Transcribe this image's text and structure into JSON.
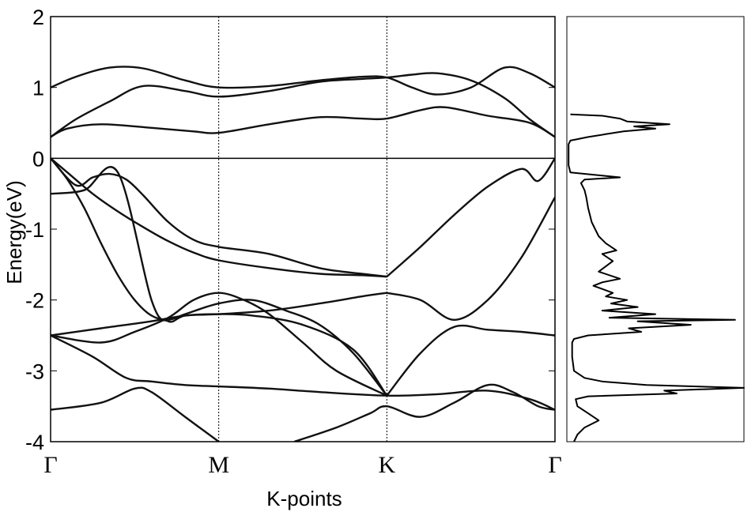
{
  "chart_data": [
    {
      "type": "line",
      "subtype": "band-structure",
      "title": "",
      "xlabel": "K-points",
      "ylabel": "Energy(eV)",
      "ylim": [
        -4,
        2
      ],
      "yticks": [
        2,
        1,
        0,
        -1,
        -2,
        -3,
        -4
      ],
      "ytick_labels": [
        "2",
        "1",
        "0",
        "-1",
        "-2",
        "-3",
        "-4"
      ],
      "x_range": [
        0,
        3
      ],
      "kpoint_positions": [
        0,
        1,
        2,
        3
      ],
      "kpoint_labels": [
        "Γ",
        "M",
        "K",
        "Γ"
      ],
      "fermi_level": 0,
      "grid": false,
      "series": [
        {
          "x": [
            0,
            0.15,
            0.35,
            0.55,
            0.8,
            1.0,
            1.3,
            1.6,
            1.85,
            2.0,
            2.15,
            2.3,
            2.5,
            2.7,
            2.85,
            3.0
          ],
          "y": [
            1.0,
            1.15,
            1.28,
            1.27,
            1.1,
            1.0,
            1.02,
            1.1,
            1.15,
            1.14,
            1.0,
            0.9,
            1.0,
            1.28,
            1.2,
            1.0
          ]
        },
        {
          "x": [
            0,
            0.15,
            0.35,
            0.55,
            0.8,
            1.0,
            1.3,
            1.6,
            1.85,
            2.0,
            2.15,
            2.3,
            2.5,
            2.7,
            2.85,
            3.0
          ],
          "y": [
            0.3,
            0.55,
            0.8,
            1.02,
            0.95,
            0.87,
            0.95,
            1.08,
            1.12,
            1.14,
            1.18,
            1.2,
            1.1,
            0.85,
            0.55,
            0.3
          ]
        },
        {
          "x": [
            0,
            0.1,
            0.3,
            0.6,
            0.85,
            1.0,
            1.3,
            1.6,
            1.85,
            2.0,
            2.2,
            2.35,
            2.6,
            2.85,
            3.0
          ],
          "y": [
            0.3,
            0.42,
            0.48,
            0.43,
            0.38,
            0.36,
            0.48,
            0.58,
            0.56,
            0.56,
            0.68,
            0.72,
            0.6,
            0.5,
            0.3
          ]
        },
        {
          "x": [
            0,
            0.1,
            0.25,
            0.4,
            0.55,
            0.7,
            0.85,
            1.0,
            1.3,
            1.6,
            1.85,
            2.0
          ],
          "y": [
            0.0,
            -0.2,
            -0.5,
            -0.75,
            -0.97,
            -1.17,
            -1.33,
            -1.44,
            -1.55,
            -1.63,
            -1.65,
            -1.67
          ]
        },
        {
          "x": [
            0,
            0.15,
            0.25,
            0.35,
            0.45,
            0.55,
            0.7,
            0.85,
            1.0,
            1.3,
            1.6,
            1.85,
            2.0
          ],
          "y": [
            0.0,
            -0.38,
            -0.27,
            -0.22,
            -0.3,
            -0.52,
            -0.9,
            -1.15,
            -1.25,
            -1.35,
            -1.55,
            -1.63,
            -1.67
          ]
        },
        {
          "x": [
            0,
            0.1,
            0.2,
            0.3,
            0.4,
            0.5,
            0.6,
            0.7,
            0.8,
            1.0,
            1.2,
            1.4,
            1.6,
            1.8,
            2.0
          ],
          "y": [
            0.0,
            -0.3,
            -0.7,
            -1.2,
            -1.65,
            -2.0,
            -2.22,
            -2.28,
            -2.2,
            -2.05,
            -2.0,
            -2.15,
            -2.35,
            -2.75,
            -3.35
          ]
        },
        {
          "x": [
            0,
            0.2,
            0.4,
            0.6,
            0.7,
            0.8,
            1.0,
            1.2,
            1.5,
            1.8,
            2.0
          ],
          "y": [
            -0.5,
            -0.45,
            -0.2,
            -2.0,
            -2.3,
            -2.22,
            -2.2,
            -2.22,
            -2.35,
            -2.7,
            -3.35
          ]
        },
        {
          "x": [
            0,
            0.3,
            0.6,
            0.8,
            1.0,
            1.3,
            1.6,
            1.85,
            2.0
          ],
          "y": [
            -2.5,
            -2.4,
            -2.3,
            -2.22,
            -2.2,
            -2.15,
            -2.05,
            -1.95,
            -1.9
          ]
        },
        {
          "x": [
            0,
            0.3,
            0.5,
            0.7,
            0.85,
            1.0,
            1.15,
            1.3,
            1.5,
            1.7,
            2.0
          ],
          "y": [
            -2.5,
            -2.6,
            -2.45,
            -2.25,
            -2.0,
            -1.9,
            -2.0,
            -2.2,
            -2.6,
            -3.0,
            -3.35
          ]
        },
        {
          "x": [
            0,
            0.25,
            0.45,
            0.6,
            0.8,
            1.0,
            1.3,
            1.6,
            2.0,
            2.3,
            2.6,
            2.85,
            3.0
          ],
          "y": [
            -2.5,
            -2.8,
            -3.1,
            -3.15,
            -3.2,
            -3.22,
            -3.25,
            -3.3,
            -3.35,
            -3.33,
            -3.28,
            -3.4,
            -3.55
          ]
        },
        {
          "x": [
            0,
            0.3,
            0.5,
            0.6,
            0.8,
            1.0
          ],
          "y": [
            -3.55,
            -3.45,
            -3.25,
            -3.3,
            -3.65,
            -4.0
          ]
        },
        {
          "x": [
            1.45,
            1.7,
            1.9,
            2.0,
            2.2,
            2.4,
            2.6,
            2.75,
            2.9,
            3.0
          ],
          "y": [
            -4.0,
            -3.8,
            -3.6,
            -3.5,
            -3.65,
            -3.45,
            -3.2,
            -3.3,
            -3.5,
            -3.55
          ]
        },
        {
          "x": [
            2.0,
            2.2,
            2.4,
            2.6,
            2.8,
            3.0
          ],
          "y": [
            -1.9,
            -2.0,
            -2.28,
            -2.0,
            -1.4,
            -0.55
          ]
        },
        {
          "x": [
            2.0,
            2.2,
            2.4,
            2.6,
            2.8,
            2.9,
            3.0
          ],
          "y": [
            -1.67,
            -1.25,
            -0.8,
            -0.4,
            -0.15,
            -0.32,
            0.0
          ]
        },
        {
          "x": [
            2.0,
            2.2,
            2.4,
            2.6,
            2.8,
            3.0
          ],
          "y": [
            -3.35,
            -2.75,
            -2.38,
            -2.42,
            -2.45,
            -2.5
          ]
        }
      ]
    },
    {
      "type": "line",
      "subtype": "density-of-states",
      "title": "",
      "xlabel": "",
      "ylabel": "",
      "ylim": [
        -4,
        2
      ],
      "xlim": [
        0,
        1
      ],
      "orientation": "vertical",
      "series": [
        {
          "energy": [
            0.62,
            0.6,
            0.56,
            0.52,
            0.48,
            0.45,
            0.42,
            0.38,
            0.34,
            0.3,
            0.27,
            0.25,
            0.2,
            0.1,
            0.0,
            -0.1,
            -0.2,
            -0.27,
            -0.3,
            -0.35,
            -0.45,
            -0.55,
            -0.7,
            -0.9,
            -1.0,
            -1.1,
            -1.2,
            -1.3,
            -1.35,
            -1.45,
            -1.6,
            -1.7,
            -1.75,
            -1.8,
            -1.9,
            -1.95,
            -2.0,
            -2.05,
            -2.1,
            -2.15,
            -2.2,
            -2.25,
            -2.28,
            -2.3,
            -2.35,
            -2.4,
            -2.45,
            -2.5,
            -2.55,
            -2.6,
            -2.8,
            -3.0,
            -3.1,
            -3.15,
            -3.2,
            -3.24,
            -3.28,
            -3.32,
            -3.36,
            -3.4,
            -3.5,
            -3.6,
            -3.7,
            -3.8,
            -3.9,
            -4.0
          ],
          "dos": [
            0.02,
            0.2,
            0.3,
            0.34,
            0.58,
            0.38,
            0.5,
            0.32,
            0.22,
            0.12,
            0.06,
            0.02,
            0.01,
            0.01,
            0.01,
            0.01,
            0.02,
            0.3,
            0.1,
            0.08,
            0.1,
            0.11,
            0.12,
            0.14,
            0.16,
            0.18,
            0.22,
            0.28,
            0.2,
            0.26,
            0.18,
            0.3,
            0.2,
            0.15,
            0.26,
            0.22,
            0.34,
            0.25,
            0.4,
            0.2,
            0.5,
            0.24,
            0.95,
            0.4,
            0.7,
            0.35,
            0.42,
            0.12,
            0.04,
            0.03,
            0.03,
            0.04,
            0.1,
            0.2,
            0.45,
            1.0,
            0.55,
            0.62,
            0.12,
            0.05,
            0.06,
            0.12,
            0.18,
            0.1,
            0.06,
            0.04
          ]
        }
      ]
    }
  ]
}
